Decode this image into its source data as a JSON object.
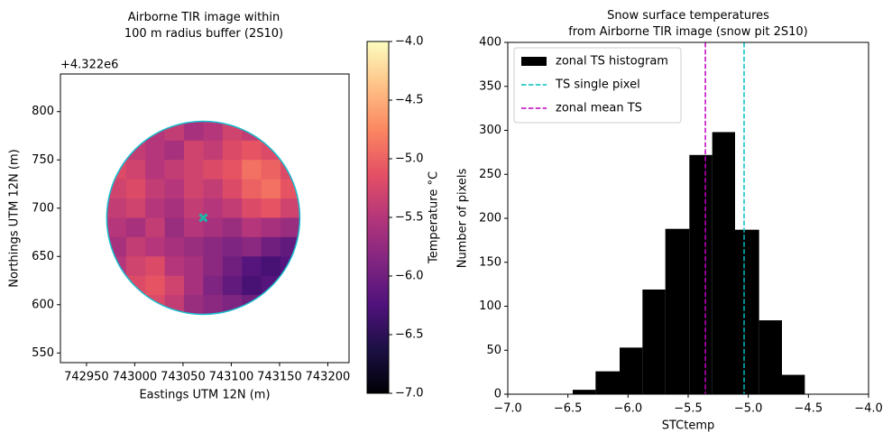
{
  "chart_data": [
    {
      "type": "heatmap",
      "title": "Airborne TIR image within\n100 m radius buffer (2S10)",
      "x_label": "Eastings UTM 12N (m)",
      "y_label": "Northings UTM 12N (m)",
      "y_offset_label": "+4.322e6",
      "colorbar_label": "Temperature °C",
      "colormap": "magma",
      "xlim": [
        742923,
        743222
      ],
      "ylim": [
        540,
        839
      ],
      "xticks": [
        742950,
        743000,
        743050,
        743100,
        743150,
        743200
      ],
      "yticks": [
        550,
        600,
        650,
        700,
        750,
        800
      ],
      "zlim": [
        -7,
        -4
      ],
      "zticks": [
        {
          "value": -4,
          "label": "−4.0"
        },
        {
          "value": -4.5,
          "label": "−4.5"
        },
        {
          "value": -5,
          "label": "−5.0"
        },
        {
          "value": -5.5,
          "label": "−5.5"
        },
        {
          "value": -6,
          "label": "−6.0"
        },
        {
          "value": -6.5,
          "label": "−6.5"
        },
        {
          "value": -7,
          "label": "−7.0"
        }
      ],
      "x": [
        742981,
        743001,
        743021,
        743041,
        743061,
        743081,
        743101,
        743121,
        743141,
        743161
      ],
      "y": [
        780,
        760,
        740,
        720,
        700,
        680,
        660,
        640,
        620,
        600
      ],
      "values": [
        [
          null,
          -5.6,
          -5.5,
          -5.4,
          -5.6,
          -5.5,
          -5.3,
          -5.4,
          -5.5,
          null
        ],
        [
          -5.3,
          -5.4,
          -5.5,
          -5.6,
          -5.3,
          -5.4,
          -5.2,
          -5.1,
          -5.2,
          -5.3
        ],
        [
          -5.2,
          -5.3,
          -5.5,
          -5.4,
          -5.3,
          -5.2,
          -5.1,
          -4.9,
          -5.0,
          -5.2
        ],
        [
          -5.3,
          -5.2,
          -5.4,
          -5.5,
          -5.3,
          -5.4,
          -5.2,
          -5.0,
          -4.9,
          -5.1
        ],
        [
          -5.4,
          -5.3,
          -5.5,
          -5.6,
          -5.4,
          -5.5,
          -5.4,
          -5.2,
          -5.1,
          -5.3
        ],
        [
          -5.5,
          -5.6,
          -5.4,
          -5.7,
          -5.5,
          -5.6,
          -5.7,
          -5.5,
          -5.6,
          -5.7
        ],
        [
          -5.6,
          -5.4,
          -5.5,
          -5.6,
          -5.7,
          -5.8,
          -5.9,
          -5.8,
          -6.0,
          -6.1
        ],
        [
          -5.5,
          -5.3,
          -5.2,
          -5.5,
          -5.6,
          -5.8,
          -6.0,
          -6.2,
          -6.3,
          -6.2
        ],
        [
          -5.4,
          -5.2,
          -5.1,
          -5.3,
          -5.6,
          -5.9,
          -6.1,
          -6.3,
          -6.2,
          -6.1
        ],
        [
          null,
          -5.3,
          -5.2,
          -5.4,
          -5.7,
          -5.8,
          -5.9,
          -6.0,
          -6.1,
          null
        ]
      ],
      "buffer": {
        "center": [
          743071,
          690
        ],
        "radius": 100,
        "color": "#17becf"
      },
      "marker": {
        "x": 743071,
        "y": 690,
        "color": "#1fb5a8"
      }
    },
    {
      "type": "histogram",
      "title": "Snow surface temperatures\nfrom Airborne TIR image (snow pit 2S10)",
      "x_label": "STCtemp",
      "y_label": "Number of pixels",
      "xlim": [
        -7,
        -4
      ],
      "ylim": [
        0,
        400
      ],
      "xticks": [
        {
          "value": -7,
          "label": "−7.0"
        },
        {
          "value": -6.5,
          "label": "−6.5"
        },
        {
          "value": -6,
          "label": "−6.0"
        },
        {
          "value": -5.5,
          "label": "−5.5"
        },
        {
          "value": -5,
          "label": "−5.0"
        },
        {
          "value": -4.5,
          "label": "−4.5"
        },
        {
          "value": -4,
          "label": "−4.0"
        }
      ],
      "yticks": [
        0,
        50,
        100,
        150,
        200,
        250,
        300,
        350,
        400
      ],
      "name": "zonal TS histogram",
      "color": "#000000",
      "bins": [
        -6.46,
        -6.27,
        -6.07,
        -5.88,
        -5.69,
        -5.49,
        -5.3,
        -5.11,
        -4.91,
        -4.72,
        -4.53
      ],
      "values": [
        5,
        26,
        53,
        119,
        188,
        272,
        298,
        187,
        84,
        22
      ],
      "vlines": [
        {
          "name": "TS single pixel",
          "color": "#00bfbf",
          "x": -5.035
        },
        {
          "name": "zonal mean TS",
          "color": "#bf00bf",
          "x": -5.357
        }
      ],
      "legend": "upper left"
    }
  ]
}
